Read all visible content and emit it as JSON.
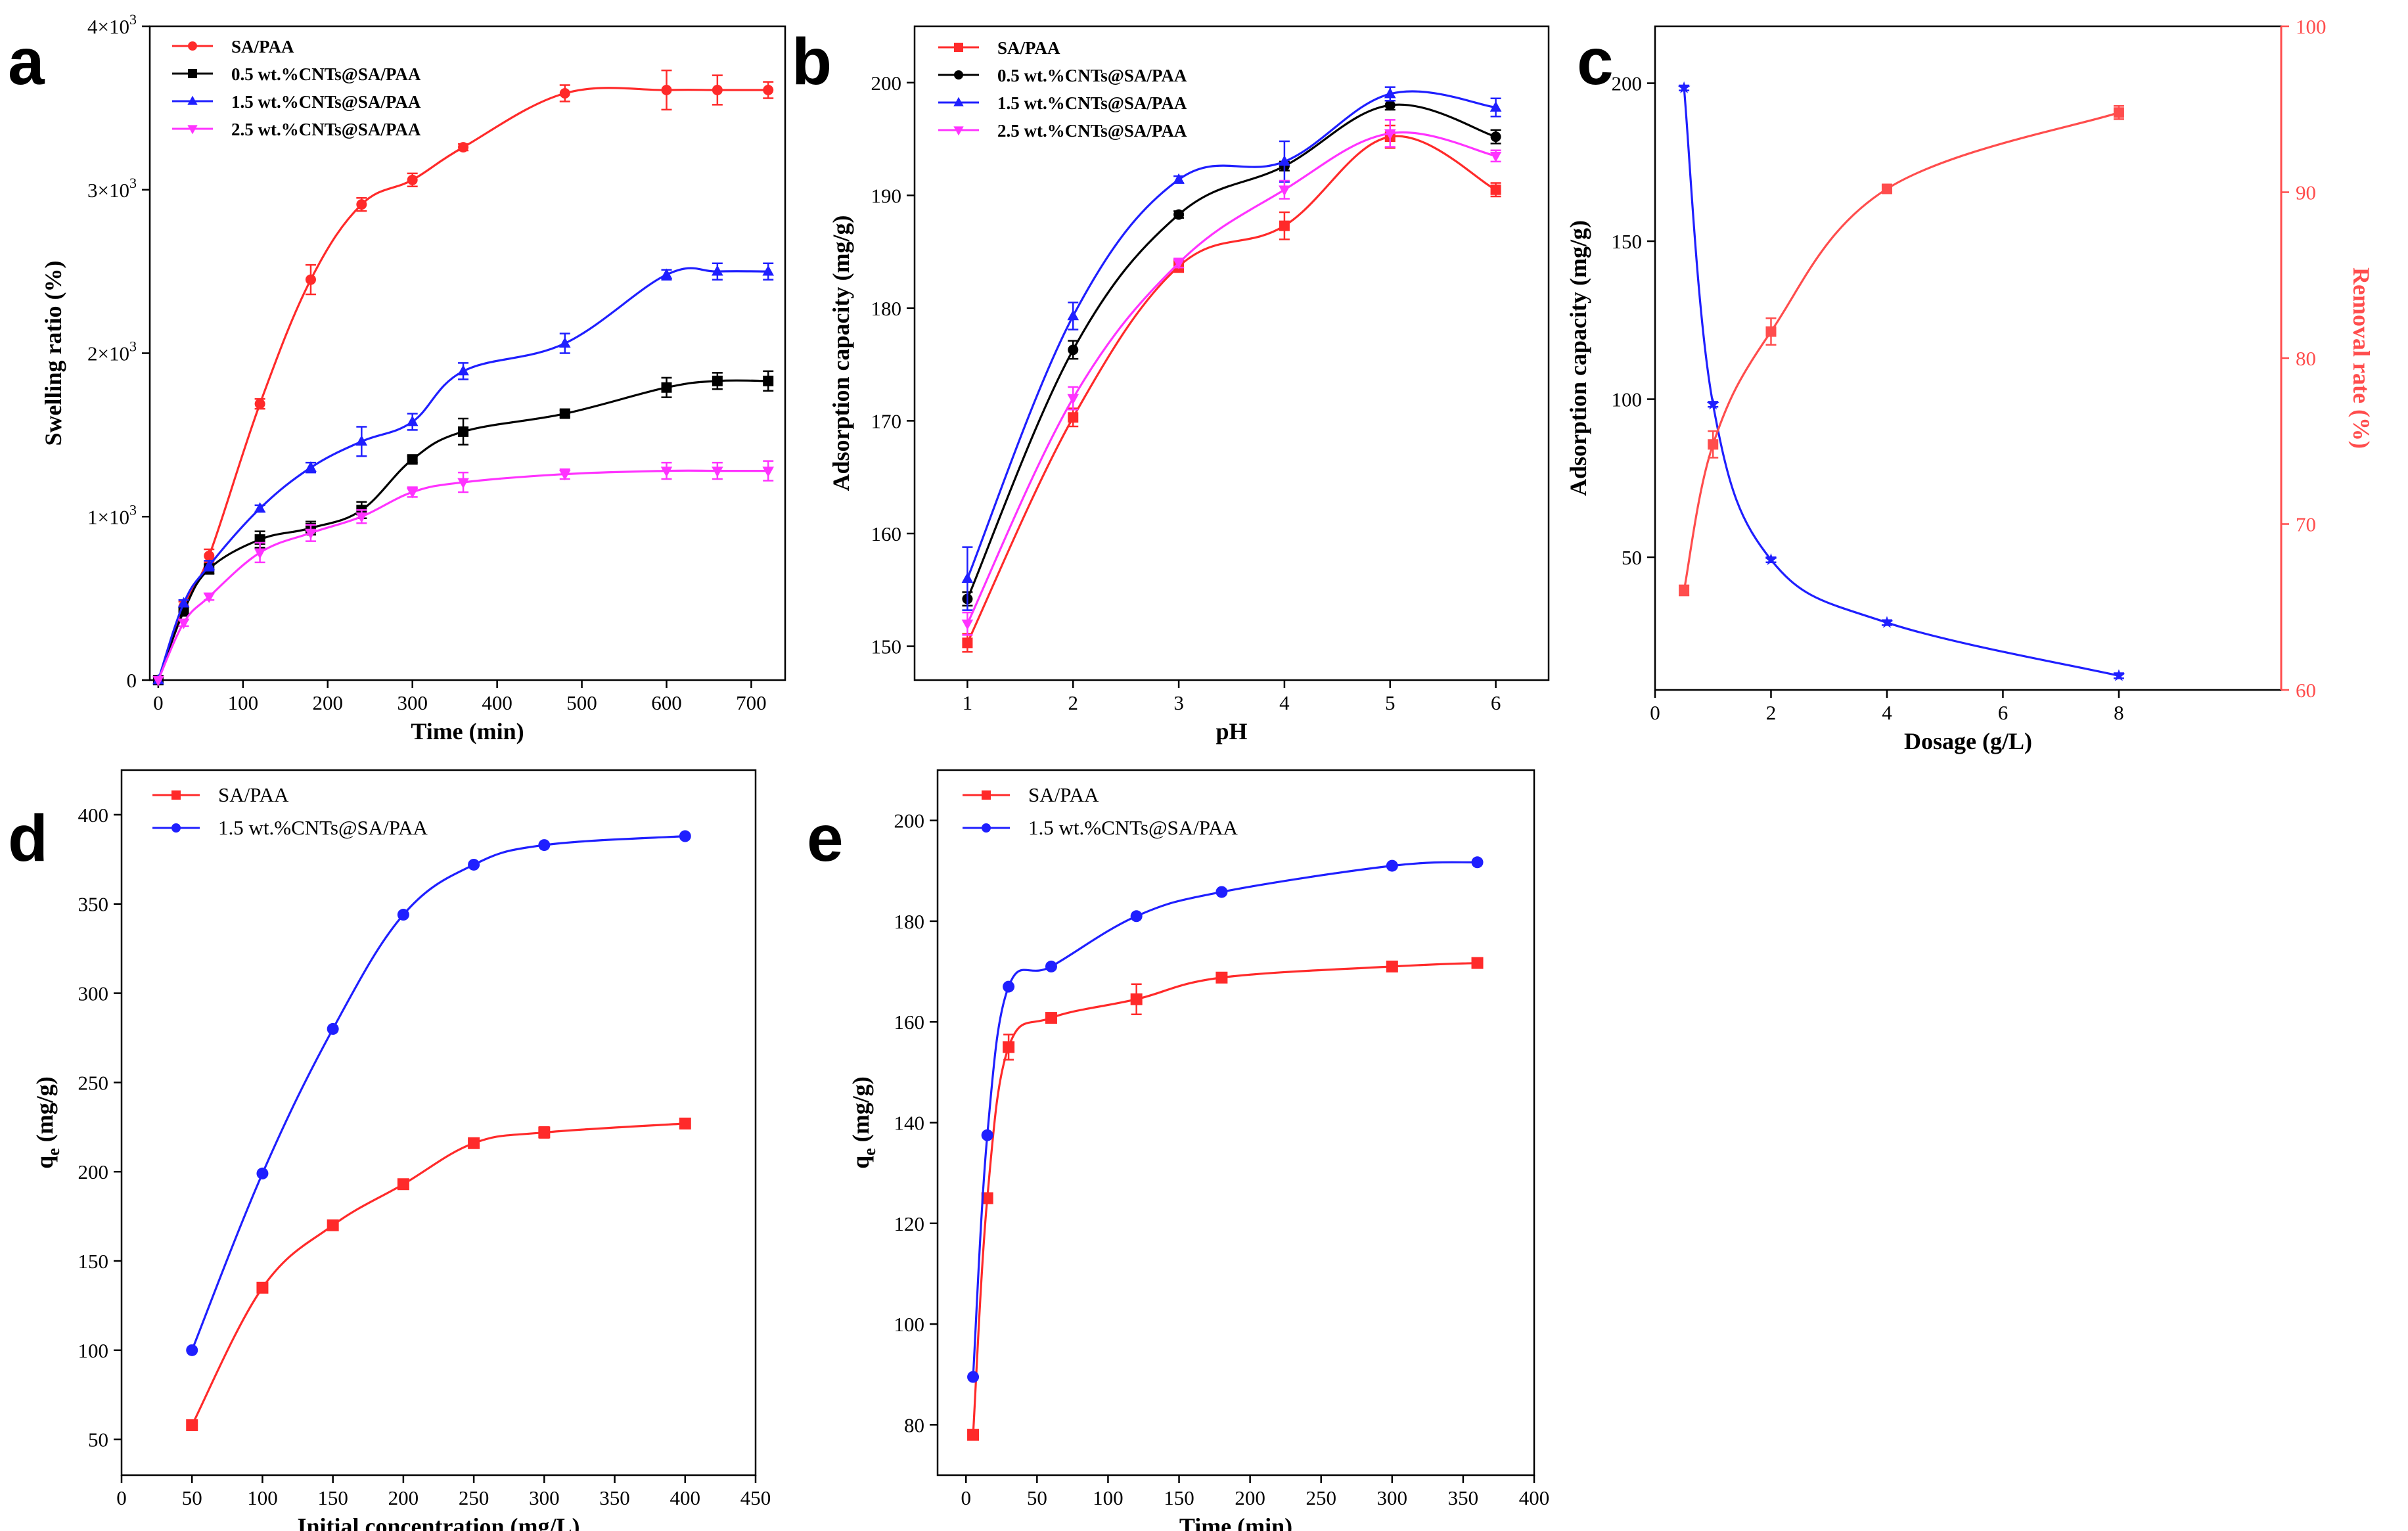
{
  "chart_data": [
    {
      "panel": "a",
      "type": "line",
      "xlabel": "Time (min)",
      "ylabel": "Swelling ratio (%)",
      "xlim": [
        -10,
        740
      ],
      "ylim": [
        0,
        4000
      ],
      "x_ticks": [
        0,
        100,
        200,
        300,
        400,
        500,
        600,
        700
      ],
      "y_ticks": [
        {
          "value": 0,
          "mant": "0",
          "exp": ""
        },
        {
          "value": 1000,
          "mant": "1×10",
          "exp": "3"
        },
        {
          "value": 2000,
          "mant": "2×10",
          "exp": "3"
        },
        {
          "value": 3000,
          "mant": "3×10",
          "exp": "3"
        },
        {
          "value": 4000,
          "mant": "4×10",
          "exp": "3"
        }
      ],
      "legend_position": "top-left",
      "x": [
        0,
        30,
        60,
        120,
        180,
        240,
        300,
        360,
        480,
        600,
        660,
        720
      ],
      "series": [
        {
          "name": "SA/PAA",
          "color": "#ff2a2a",
          "marker": "circle",
          "values": [
            0,
            450,
            760,
            1690,
            2450,
            2910,
            3060,
            3260,
            3590,
            3610,
            3610,
            3610
          ],
          "errors": [
            0,
            30,
            40,
            30,
            90,
            40,
            40,
            20,
            50,
            120,
            90,
            50
          ]
        },
        {
          "name": "0.5 wt.%CNTs@SA/PAA",
          "color": "#000000",
          "marker": "square",
          "values": [
            0,
            420,
            680,
            860,
            930,
            1040,
            1350,
            1520,
            1630,
            1790,
            1830,
            1830
          ],
          "errors": [
            0,
            25,
            30,
            50,
            40,
            50,
            20,
            80,
            20,
            60,
            50,
            60
          ]
        },
        {
          "name": "1.5 wt.%CNTs@SA/PAA",
          "color": "#1f1fff",
          "marker": "triangle-up",
          "values": [
            0,
            470,
            700,
            1050,
            1300,
            1460,
            1580,
            1890,
            2060,
            2480,
            2500,
            2500
          ],
          "errors": [
            0,
            20,
            30,
            20,
            30,
            90,
            50,
            50,
            60,
            30,
            50,
            50
          ]
        },
        {
          "name": "2.5 wt.%CNTs@SA/PAA",
          "color": "#ff33ff",
          "marker": "triangle-down",
          "values": [
            0,
            350,
            510,
            780,
            900,
            1000,
            1150,
            1210,
            1260,
            1280,
            1280,
            1280
          ],
          "errors": [
            0,
            20,
            20,
            60,
            50,
            40,
            30,
            60,
            30,
            50,
            50,
            60
          ]
        }
      ]
    },
    {
      "panel": "b",
      "type": "line",
      "xlabel": "pH",
      "ylabel": "Adsorption capacity (mg/g)",
      "xlim": [
        0.5,
        6.5
      ],
      "ylim": [
        147,
        205
      ],
      "x_ticks": [
        1,
        2,
        3,
        4,
        5,
        6
      ],
      "y_ticks": [
        150,
        160,
        170,
        180,
        190,
        200
      ],
      "legend_position": "top-left",
      "x": [
        1,
        2,
        3,
        4,
        5,
        6
      ],
      "series": [
        {
          "name": "SA/PAA",
          "color": "#ff2a2a",
          "marker": "square",
          "values": [
            150.3,
            170.3,
            183.7,
            187.3,
            195.2,
            190.5
          ],
          "errors": [
            0.8,
            0.8,
            0.5,
            1.2,
            1.0,
            0.6
          ]
        },
        {
          "name": "0.5 wt.%CNTs@SA/PAA",
          "color": "#000000",
          "marker": "circle",
          "values": [
            154.2,
            176.3,
            188.3,
            192.6,
            198.0,
            195.2
          ],
          "errors": [
            0.6,
            0.8,
            0.3,
            0.4,
            0.4,
            0.6
          ]
        },
        {
          "name": "1.5 wt.%CNTs@SA/PAA",
          "color": "#1f1fff",
          "marker": "triangle-up",
          "values": [
            156.0,
            179.3,
            191.4,
            193.0,
            199.0,
            197.8
          ],
          "errors": [
            2.8,
            1.2,
            0.3,
            1.8,
            0.6,
            0.8
          ]
        },
        {
          "name": "2.5 wt.%CNTs@SA/PAA",
          "color": "#ff33ff",
          "marker": "triangle-down",
          "values": [
            152.0,
            172.0,
            184.0,
            190.5,
            195.5,
            193.5
          ],
          "errors": [
            1.0,
            1.0,
            0.4,
            0.8,
            1.2,
            0.5
          ]
        }
      ]
    },
    {
      "panel": "c",
      "type": "line",
      "xlabel": "Dosage (g/L)",
      "ylabel": "Adsorption capacity (mg/g)",
      "ylabel_right": "Removal rate (%)",
      "xlim": [
        0,
        10.8
      ],
      "ylim": [
        8,
        218
      ],
      "ylim_right": [
        60,
        100
      ],
      "x_ticks": [
        0,
        2,
        4,
        6,
        8
      ],
      "y_ticks": [
        50,
        100,
        150,
        200
      ],
      "y_ticks_right": [
        60,
        70,
        80,
        90,
        100
      ],
      "x": [
        0.5,
        1,
        2,
        4,
        8
      ],
      "series": [
        {
          "name": "Adsorption capacity",
          "axis": "left",
          "color": "#1f1fff",
          "marker": "star",
          "values": [
            198.5,
            98.4,
            49.2,
            29.3,
            12.5
          ],
          "errors": [
            0.8,
            0.8,
            0.8,
            0.8,
            0.8
          ]
        },
        {
          "name": "Removal rate",
          "axis": "right",
          "color": "#ff4d4d",
          "marker": "square",
          "values": [
            66.0,
            74.8,
            81.6,
            90.2,
            94.8
          ],
          "errors": [
            0.3,
            0.8,
            0.8,
            0.2,
            0.4
          ]
        }
      ]
    },
    {
      "panel": "d",
      "type": "line",
      "xlabel": "Initial concentration (mg/L)",
      "ylabel": "q",
      "ylabel_sub": "e",
      "ylabel_suffix": " (mg/g)",
      "xlim": [
        0,
        450
      ],
      "ylim": [
        30,
        425
      ],
      "x_ticks": [
        0,
        50,
        100,
        150,
        200,
        250,
        300,
        350,
        400,
        450
      ],
      "y_ticks": [
        50,
        100,
        150,
        200,
        250,
        300,
        350,
        400
      ],
      "legend_position": "top-left",
      "x": [
        50,
        100,
        150,
        200,
        250,
        300,
        400
      ],
      "series": [
        {
          "name": "SA/PAA",
          "color": "#ff2a2a",
          "marker": "square",
          "values": [
            58,
            135,
            170,
            193,
            216,
            222,
            227
          ],
          "errors": [
            0,
            0,
            0,
            0,
            0,
            3,
            0
          ]
        },
        {
          "name": "1.5 wt.%CNTs@SA/PAA",
          "color": "#1f1fff",
          "marker": "circle",
          "values": [
            100,
            199,
            280,
            344,
            372,
            383,
            388
          ],
          "errors": [
            0,
            0,
            0,
            0,
            0,
            0,
            0
          ]
        }
      ]
    },
    {
      "panel": "e",
      "type": "line",
      "xlabel": "Time (min)",
      "ylabel": "q",
      "ylabel_sub": "e",
      "ylabel_suffix": " (mg/g)",
      "xlim": [
        -20,
        400
      ],
      "ylim": [
        70,
        210
      ],
      "x_ticks": [
        0,
        50,
        100,
        150,
        200,
        250,
        300,
        350,
        400
      ],
      "y_ticks": [
        80,
        100,
        120,
        140,
        160,
        180,
        200
      ],
      "legend_position": "top-left",
      "x": [
        5,
        15,
        30,
        60,
        120,
        180,
        300,
        360
      ],
      "series": [
        {
          "name": "SA/PAA",
          "color": "#ff2a2a",
          "marker": "square",
          "values": [
            78,
            125,
            155,
            160.8,
            164.5,
            168.8,
            171,
            171.7
          ],
          "errors": [
            0,
            0,
            2.5,
            0,
            3,
            0,
            0,
            0
          ]
        },
        {
          "name": "1.5 wt.%CNTs@SA/PAA",
          "color": "#1f1fff",
          "marker": "circle",
          "values": [
            89.5,
            137.5,
            167,
            171,
            181,
            185.8,
            191,
            191.7
          ],
          "errors": [
            0,
            0,
            0,
            0,
            0,
            0,
            0,
            0
          ]
        }
      ]
    }
  ]
}
